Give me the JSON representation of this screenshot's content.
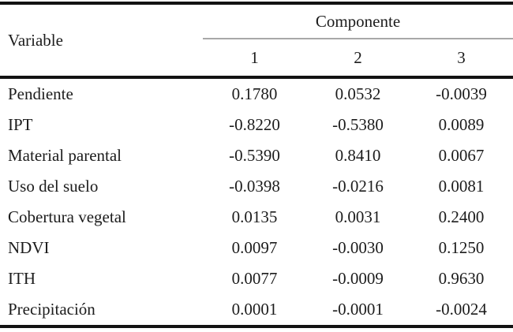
{
  "table": {
    "header": {
      "variable_label": "Variable",
      "component_group_label": "Componente",
      "component_columns": [
        "1",
        "2",
        "3"
      ]
    },
    "rows": [
      {
        "variable": "Pendiente",
        "values": [
          "0.1780",
          "0.0532",
          "-0.0039"
        ]
      },
      {
        "variable": "IPT",
        "values": [
          "-0.8220",
          "-0.5380",
          "0.0089"
        ]
      },
      {
        "variable": "Material parental",
        "values": [
          "-0.5390",
          "0.8410",
          "0.0067"
        ]
      },
      {
        "variable": "Uso del suelo",
        "values": [
          "-0.0398",
          "-0.0216",
          "0.0081"
        ]
      },
      {
        "variable": "Cobertura vegetal",
        "values": [
          "0.0135",
          "0.0031",
          "0.2400"
        ]
      },
      {
        "variable": "NDVI",
        "values": [
          "0.0097",
          "-0.0030",
          "0.1250"
        ]
      },
      {
        "variable": "ITH",
        "values": [
          "0.0077",
          "-0.0009",
          "0.9630"
        ]
      },
      {
        "variable": "Precipitación",
        "values": [
          "0.0001",
          "-0.0001",
          "-0.0024"
        ]
      }
    ],
    "colors": {
      "text": "#1c1c1c",
      "rule_heavy": "#121212",
      "rule_light": "#a8a8a8",
      "background": "#ffffff"
    }
  }
}
